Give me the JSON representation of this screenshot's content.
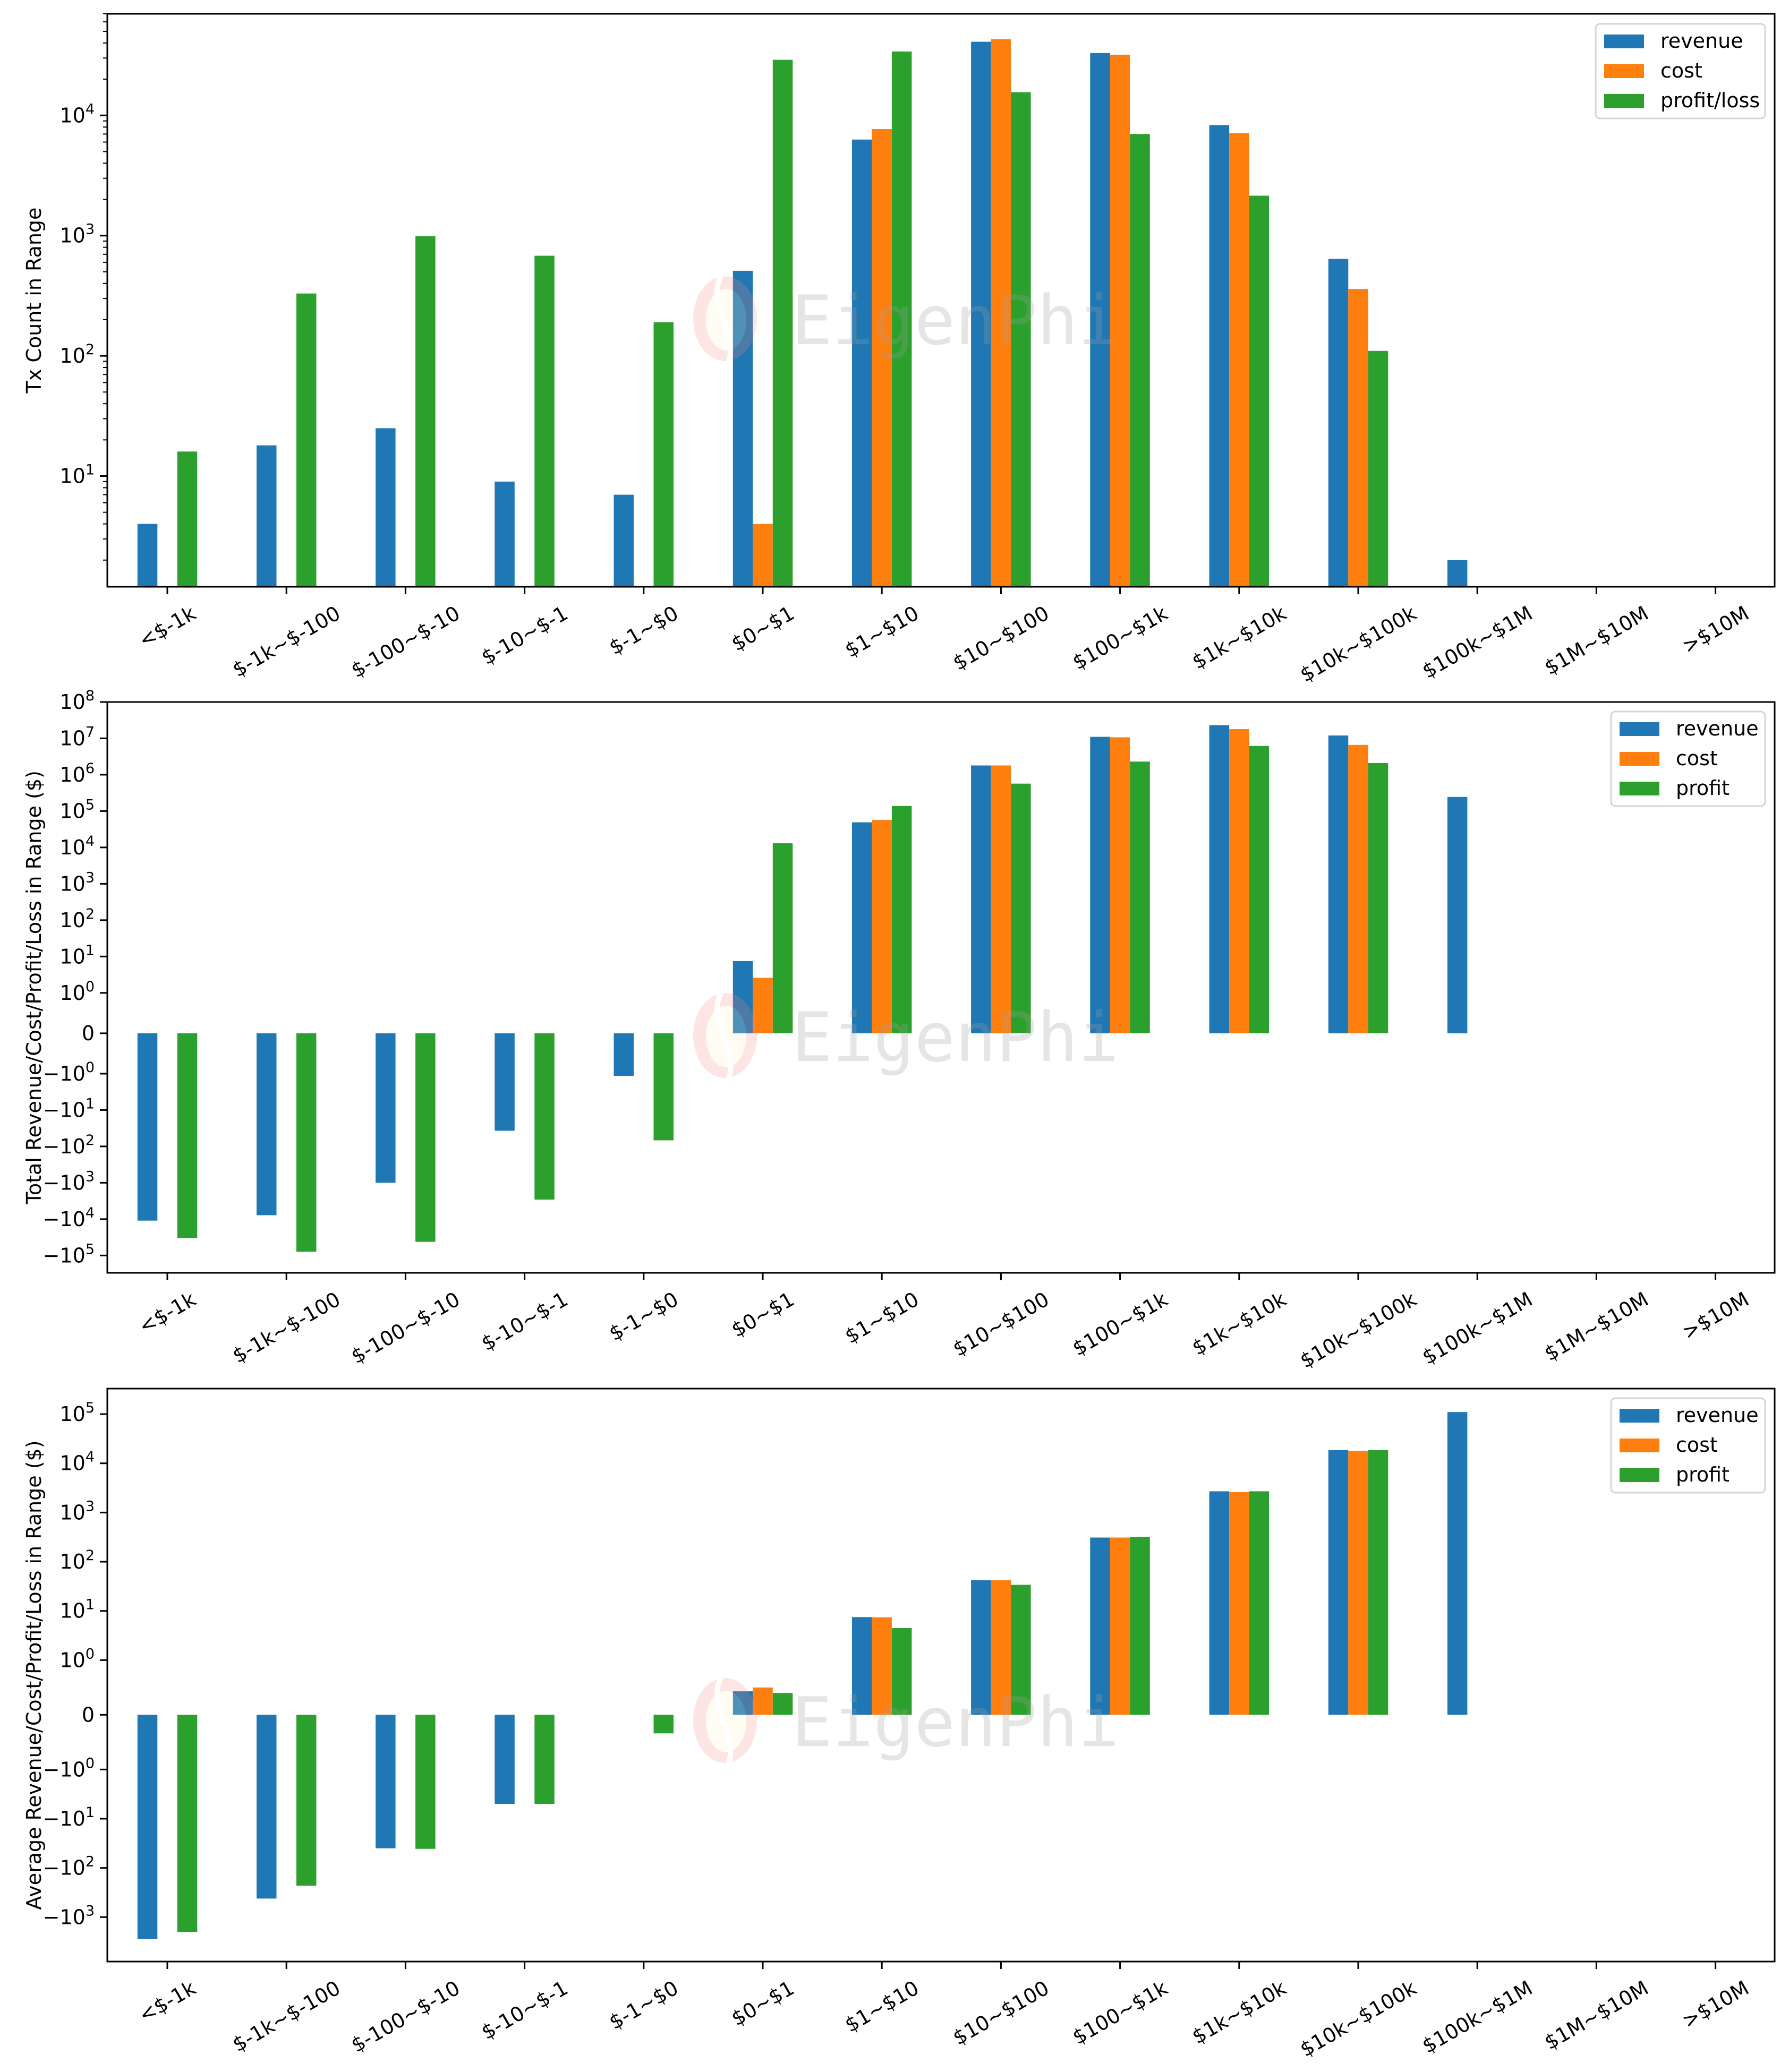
{
  "watermark": {
    "text": "EigenPhi"
  },
  "colors": {
    "revenue": "#1f77b4",
    "cost": "#ff7f0e",
    "profit": "#2ca02c"
  },
  "chart_data": [
    {
      "type": "bar",
      "id": "tx-count",
      "yscale": "log",
      "ylabel": "Tx Count in Range",
      "xlabel": "",
      "ylim": [
        1.2,
        70000
      ],
      "yticks": [
        {
          "value": 10,
          "base": "10",
          "exp": "1"
        },
        {
          "value": 100,
          "base": "10",
          "exp": "2"
        },
        {
          "value": 1000,
          "base": "10",
          "exp": "3"
        },
        {
          "value": 10000,
          "base": "10",
          "exp": "4"
        }
      ],
      "minor_ticks": true,
      "grid": false,
      "legend_position": "top-right",
      "categories": [
        "<$-1k",
        "$-1k~$-100",
        "$-100~$-10",
        "$-10~$-1",
        "$-1~$0",
        "$0~$1",
        "$1~$10",
        "$10~$100",
        "$100~$1k",
        "$1k~$10k",
        "$10k~$100k",
        "$100k~$1M",
        "$1M~$10M",
        ">$10M"
      ],
      "series": [
        {
          "name": "revenue",
          "color_key": "revenue",
          "values": [
            4,
            18,
            25,
            9,
            7,
            510,
            6300,
            41000,
            33000,
            8300,
            640,
            2,
            0,
            0
          ]
        },
        {
          "name": "cost",
          "color_key": "cost",
          "values": [
            0,
            0,
            0,
            0,
            0,
            4,
            7700,
            43000,
            32000,
            7100,
            360,
            0,
            0,
            0
          ]
        },
        {
          "name": "profit/loss",
          "color_key": "profit",
          "values": [
            16,
            330,
            990,
            680,
            190,
            29000,
            34000,
            15600,
            7000,
            2150,
            110,
            0,
            0,
            0
          ]
        }
      ]
    },
    {
      "type": "bar",
      "id": "total-values",
      "yscale": "symlog",
      "ylabel": "Total Revenue/Cost/Profit/Loss in Range ($)",
      "xlabel": "",
      "ylim": [
        -300000,
        100000000
      ],
      "yticks": [
        {
          "value": 100000000,
          "base": "10",
          "exp": "8",
          "sign": ""
        },
        {
          "value": 10000000,
          "base": "10",
          "exp": "7",
          "sign": ""
        },
        {
          "value": 1000000,
          "base": "10",
          "exp": "6",
          "sign": ""
        },
        {
          "value": 100000,
          "base": "10",
          "exp": "5",
          "sign": ""
        },
        {
          "value": 10000,
          "base": "10",
          "exp": "4",
          "sign": ""
        },
        {
          "value": 1000,
          "base": "10",
          "exp": "3",
          "sign": ""
        },
        {
          "value": 100,
          "base": "10",
          "exp": "2",
          "sign": ""
        },
        {
          "value": 10,
          "base": "10",
          "exp": "1",
          "sign": ""
        },
        {
          "value": 1,
          "base": "10",
          "exp": "0",
          "sign": ""
        },
        {
          "value": 0,
          "base": "0",
          "exp": "",
          "sign": ""
        },
        {
          "value": -1,
          "base": "10",
          "exp": "0",
          "sign": "−"
        },
        {
          "value": -10,
          "base": "10",
          "exp": "1",
          "sign": "−"
        },
        {
          "value": -100,
          "base": "10",
          "exp": "2",
          "sign": "−"
        },
        {
          "value": -1000,
          "base": "10",
          "exp": "3",
          "sign": "−"
        },
        {
          "value": -10000,
          "base": "10",
          "exp": "4",
          "sign": "−"
        },
        {
          "value": -100000,
          "base": "10",
          "exp": "5",
          "sign": "−"
        }
      ],
      "grid": false,
      "legend_position": "top-right",
      "categories": [
        "<$-1k",
        "$-1k~$-100",
        "$-100~$-10",
        "$-10~$-1",
        "$-1~$0",
        "$0~$1",
        "$1~$10",
        "$10~$100",
        "$100~$1k",
        "$1k~$10k",
        "$10k~$100k",
        "$100k~$1M",
        "$1M~$10M",
        ">$10M"
      ],
      "series": [
        {
          "name": "revenue",
          "color_key": "revenue",
          "values": [
            -11000,
            -7800,
            -1000,
            -37,
            -1.15,
            7.5,
            49000,
            1800000,
            11000000,
            23000000,
            12000000,
            245000,
            0,
            0
          ]
        },
        {
          "name": "cost",
          "color_key": "cost",
          "values": [
            0,
            0,
            0,
            0,
            0,
            2.6,
            57000,
            1800000,
            10700000,
            18000000,
            6600000,
            0,
            0,
            0
          ]
        },
        {
          "name": "profit",
          "color_key": "profit",
          "values": [
            -33000,
            -79000,
            -42000,
            -2900,
            -68,
            13000,
            138000,
            570000,
            2300000,
            6200000,
            2100000,
            0,
            0,
            0
          ]
        }
      ]
    },
    {
      "type": "bar",
      "id": "average-values",
      "yscale": "symlog",
      "ylabel": "Average Revenue/Cost/Profit/Loss in Range ($)",
      "xlabel": "",
      "ylim": [
        -8000,
        330000
      ],
      "yticks": [
        {
          "value": 100000,
          "base": "10",
          "exp": "5",
          "sign": ""
        },
        {
          "value": 10000,
          "base": "10",
          "exp": "4",
          "sign": ""
        },
        {
          "value": 1000,
          "base": "10",
          "exp": "3",
          "sign": ""
        },
        {
          "value": 100,
          "base": "10",
          "exp": "2",
          "sign": ""
        },
        {
          "value": 10,
          "base": "10",
          "exp": "1",
          "sign": ""
        },
        {
          "value": 1,
          "base": "10",
          "exp": "0",
          "sign": ""
        },
        {
          "value": 0,
          "base": "0",
          "exp": "",
          "sign": ""
        },
        {
          "value": -1,
          "base": "10",
          "exp": "0",
          "sign": "−"
        },
        {
          "value": -10,
          "base": "10",
          "exp": "1",
          "sign": "−"
        },
        {
          "value": -100,
          "base": "10",
          "exp": "2",
          "sign": "−"
        },
        {
          "value": -1000,
          "base": "10",
          "exp": "3",
          "sign": "−"
        }
      ],
      "grid": false,
      "legend_position": "top-right",
      "categories": [
        "<$-1k",
        "$-1k~$-100",
        "$-100~$-10",
        "$-10~$-1",
        "$-1~$0",
        "$0~$1",
        "$1~$10",
        "$10~$100",
        "$100~$1k",
        "$1k~$10k",
        "$10k~$100k",
        "$100k~$1M",
        "$1M~$10M",
        ">$10M"
      ],
      "series": [
        {
          "name": "revenue",
          "color_key": "revenue",
          "values": [
            -2800,
            -420,
            -40,
            -5.0,
            0,
            0.43,
            7.5,
            42,
            310,
            2700,
            18500,
            110000,
            0,
            0
          ]
        },
        {
          "name": "cost",
          "color_key": "cost",
          "values": [
            0,
            0,
            0,
            0,
            0,
            0.5,
            7.4,
            42,
            310,
            2600,
            18000,
            0,
            0,
            0
          ]
        },
        {
          "name": "profit",
          "color_key": "profit",
          "values": [
            -2000,
            -230,
            -41,
            -5.0,
            -0.34,
            0.4,
            4.5,
            34,
            320,
            2700,
            18500,
            0,
            0,
            0
          ]
        }
      ]
    }
  ]
}
